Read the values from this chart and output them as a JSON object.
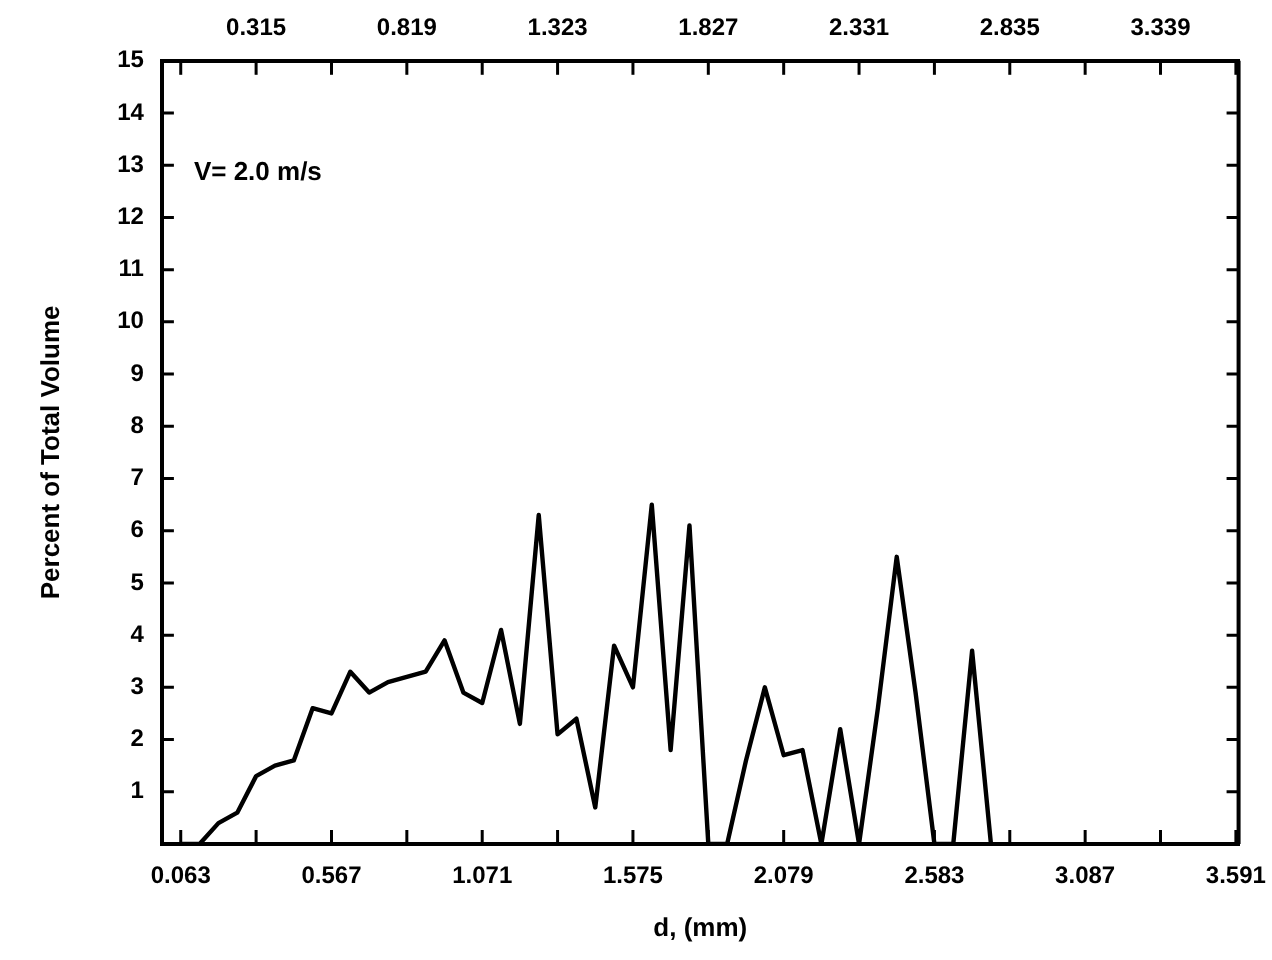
{
  "chart_data": {
    "type": "line",
    "xlabel": "d, (mm)",
    "ylabel": "Percent of Total Volume",
    "annotations": [
      "V= 2.0 m/s"
    ],
    "x": [
      0.063,
      0.126,
      0.189,
      0.252,
      0.315,
      0.378,
      0.441,
      0.504,
      0.567,
      0.63,
      0.693,
      0.756,
      0.819,
      0.882,
      0.945,
      1.008,
      1.071,
      1.134,
      1.197,
      1.26,
      1.323,
      1.386,
      1.449,
      1.512,
      1.575,
      1.638,
      1.701,
      1.764,
      1.827,
      1.89,
      1.953,
      2.016,
      2.079,
      2.142,
      2.205,
      2.268,
      2.331,
      2.394,
      2.457,
      2.52,
      2.583,
      2.646,
      2.709,
      2.772
    ],
    "series": [
      {
        "color": "#000000",
        "values": [
          0,
          0,
          0.4,
          0.6,
          1.3,
          1.5,
          1.6,
          2.6,
          2.5,
          3.3,
          2.9,
          3.1,
          3.2,
          3.3,
          3.9,
          2.9,
          2.7,
          4.1,
          2.3,
          6.3,
          2.1,
          2.4,
          0.7,
          3.8,
          3.0,
          6.5,
          1.8,
          6.1,
          0,
          0,
          1.6,
          3.0,
          1.7,
          1.8,
          0,
          2.2,
          0,
          2.6,
          5.5,
          2.9,
          0,
          0,
          3.7,
          0
        ]
      }
    ],
    "xlim": [
      0,
      3.6
    ],
    "xticks": [
      0.063,
      {
        "value": 0.315,
        "label": null
      },
      0.567,
      {
        "value": 0.819,
        "label": null
      },
      1.071,
      {
        "value": 1.323,
        "label": null
      },
      1.575,
      {
        "value": 1.827,
        "label": null
      },
      2.079,
      {
        "value": 2.331,
        "label": null
      },
      2.583,
      {
        "value": 2.835,
        "label": null
      },
      3.087,
      {
        "value": 3.339,
        "label": null
      },
      3.591
    ],
    "x2lim": [
      0,
      3.6
    ],
    "x2ticks": [
      {
        "value": 0.063,
        "label": null
      },
      0.315,
      {
        "value": 0.567,
        "label": null
      },
      0.819,
      {
        "value": 1.071,
        "label": null
      },
      1.323,
      {
        "value": 1.575,
        "label": null
      },
      1.827,
      {
        "value": 2.079,
        "label": null
      },
      2.331,
      {
        "value": 2.583,
        "label": null
      },
      2.835,
      {
        "value": 3.087,
        "label": null
      },
      3.339,
      {
        "value": 3.591,
        "label": null
      }
    ],
    "ylim": [
      0,
      15
    ],
    "yticks": [
      1,
      2,
      3,
      4,
      5,
      6,
      7,
      8,
      9,
      10,
      11,
      12,
      13,
      14,
      15
    ],
    "grid": false,
    "legend": false,
    "marker": "none",
    "line_style": "solid"
  }
}
